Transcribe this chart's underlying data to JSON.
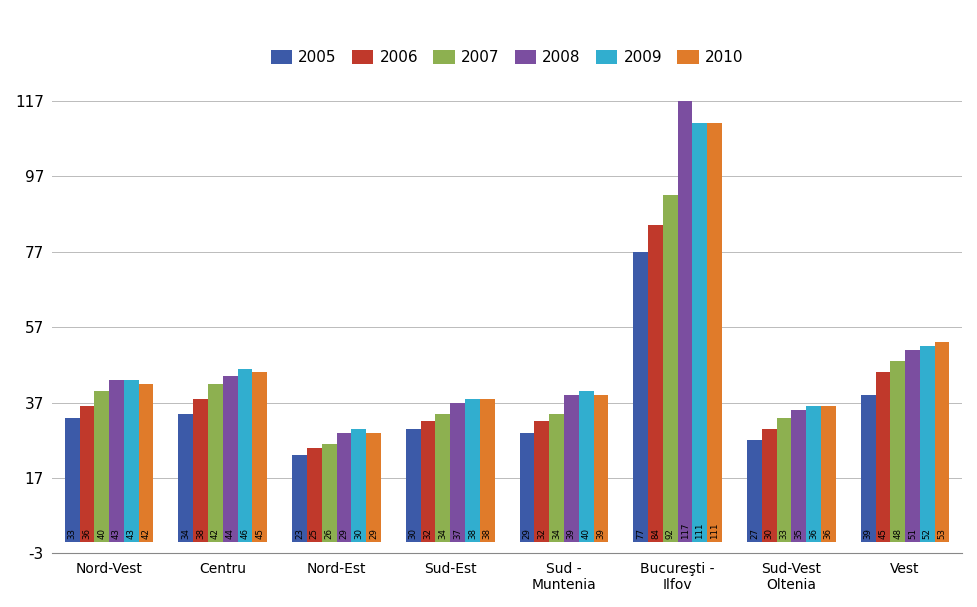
{
  "categories": [
    "Nord-Vest",
    "Centru",
    "Nord-Est",
    "Sud-Est",
    "Sud -\nMuntenia",
    "Bucureşti -\nIlfov",
    "Sud-Vest\nOltenia",
    "Vest"
  ],
  "years": [
    "2005",
    "2006",
    "2007",
    "2008",
    "2009",
    "2010"
  ],
  "values": [
    [
      33,
      36,
      40,
      43,
      43,
      42
    ],
    [
      34,
      38,
      42,
      44,
      46,
      45
    ],
    [
      23,
      25,
      26,
      29,
      30,
      29
    ],
    [
      30,
      32,
      34,
      37,
      38,
      38
    ],
    [
      29,
      32,
      34,
      39,
      40,
      39
    ],
    [
      77,
      84,
      92,
      117,
      111,
      111
    ],
    [
      27,
      30,
      33,
      35,
      36,
      36
    ],
    [
      39,
      45,
      48,
      51,
      52,
      53
    ]
  ],
  "colors": [
    "#3C5AA8",
    "#C0392B",
    "#8DB050",
    "#7B4EA0",
    "#31AECF",
    "#E07B2A"
  ],
  "ylim": [
    -3,
    125
  ],
  "yticks": [
    -3,
    17,
    37,
    57,
    77,
    97,
    117
  ],
  "bar_width": 0.13,
  "background_color": "#FFFFFF",
  "grid_color": "#BBBBBB",
  "value_label_fontsize": 6.2,
  "figsize": [
    9.77,
    6.07
  ],
  "dpi": 100
}
